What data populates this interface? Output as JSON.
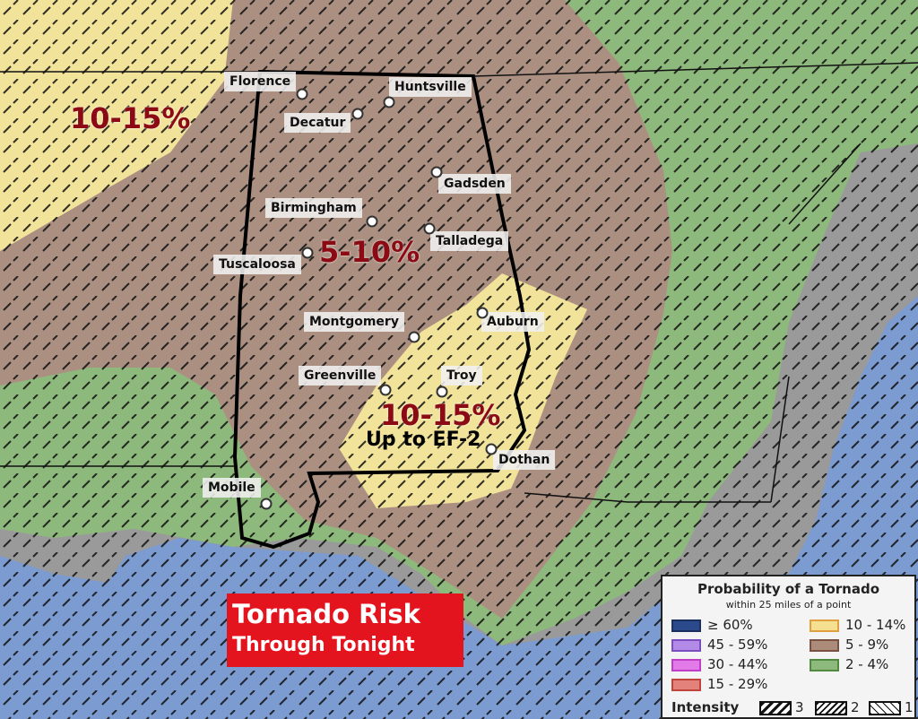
{
  "colors": {
    "water": "#7c9bd0",
    "grey_land": "#9a9a9a",
    "green": "#8db97c",
    "brown": "#ab9082",
    "yellow": "#f2e39b",
    "risk_text": "#8b0a14",
    "banner": "#e3141e"
  },
  "cities": [
    {
      "name": "Florence"
    },
    {
      "name": "Huntsville"
    },
    {
      "name": "Decatur"
    },
    {
      "name": "Gadsden"
    },
    {
      "name": "Birmingham"
    },
    {
      "name": "Talladega"
    },
    {
      "name": "Tuscaloosa"
    },
    {
      "name": "Montgomery"
    },
    {
      "name": "Auburn"
    },
    {
      "name": "Greenville"
    },
    {
      "name": "Troy"
    },
    {
      "name": "Dothan"
    },
    {
      "name": "Mobile"
    }
  ],
  "risk_labels": {
    "nw": "10-15%",
    "central": "5-10%",
    "se": "10-15%",
    "se_intensity": "Up to EF-2"
  },
  "banner": {
    "line1": "Tornado Risk",
    "line2": "Through Tonight"
  },
  "legend": {
    "title": "Probability of a Tornado",
    "subtitle": "within 25 miles of a point",
    "items": [
      {
        "label": "≥ 60%",
        "color": "#2b4a8c"
      },
      {
        "label": "45 - 59%",
        "color": "#b48ae8"
      },
      {
        "label": "30 - 44%",
        "color": "#e27ae8"
      },
      {
        "label": "15 - 29%",
        "color": "#e3827a"
      },
      {
        "label": "10 - 14%",
        "color": "#f5df90"
      },
      {
        "label": "5 - 9%",
        "color": "#ab8b7a"
      },
      {
        "label": "2 - 4%",
        "color": "#8db97c"
      }
    ],
    "intensity_label": "Intensity",
    "intensity_levels": [
      "3",
      "2",
      "1"
    ]
  }
}
